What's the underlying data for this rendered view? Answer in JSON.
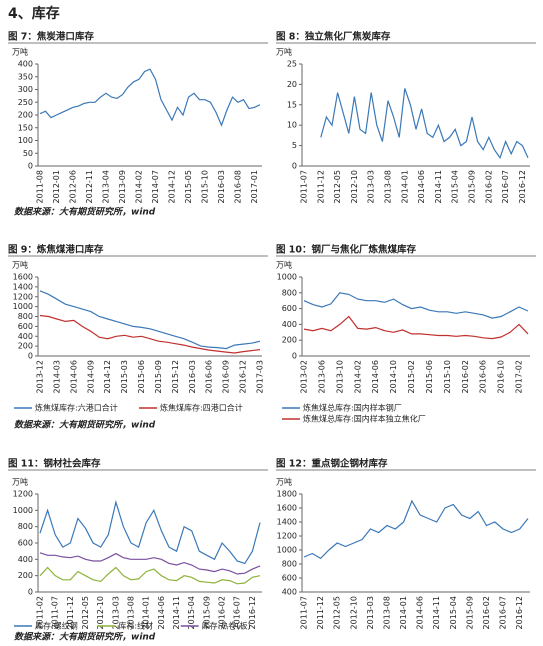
{
  "section_title": "4、库存",
  "sources": [
    "数据来源：大有期货研究所，wind",
    "数据来源：大有期货研究所，wind",
    "数据来源：大有期货研究所，wind"
  ],
  "chart_data": [
    {
      "type": "line",
      "title": "图 7：焦炭港口库存",
      "y_unit": "万吨",
      "x": [
        "2011-08",
        null,
        null,
        "2012-01",
        null,
        null,
        "2012-06",
        null,
        null,
        "2012-11",
        null,
        null,
        "2013-04",
        null,
        null,
        "2013-09",
        null,
        null,
        "2014-02",
        null,
        null,
        "2014-07",
        null,
        null,
        "2014-12",
        null,
        null,
        "2015-05",
        null,
        null,
        "2015-10",
        null,
        null,
        "2016-03",
        null,
        null,
        "2016-08",
        null,
        null,
        "2017-01",
        null
      ],
      "ylim": [
        0,
        400
      ],
      "yticks": [
        0,
        50,
        100,
        150,
        200,
        250,
        300,
        350,
        400
      ],
      "series": [
        {
          "color": "#3a78b8",
          "values": [
            205,
            215,
            190,
            200,
            210,
            220,
            230,
            235,
            245,
            250,
            250,
            270,
            285,
            270,
            265,
            280,
            310,
            330,
            340,
            370,
            380,
            340,
            260,
            220,
            180,
            230,
            200,
            270,
            285,
            260,
            260,
            250,
            210,
            160,
            220,
            270,
            250,
            260,
            225,
            230,
            240
          ]
        }
      ]
    },
    {
      "type": "line",
      "title": "图 8：独立焦化厂焦炭库存",
      "y_unit": "万吨",
      "x": [
        "2011-07",
        null,
        null,
        "2011-12",
        null,
        null,
        "2012-05",
        null,
        null,
        "2012-10",
        null,
        null,
        "2013-03",
        null,
        null,
        "2013-08",
        null,
        null,
        "2014-01",
        null,
        null,
        "2014-06",
        null,
        null,
        "2014-11",
        null,
        null,
        "2015-04",
        null,
        null,
        "2015-09",
        null,
        null,
        "2016-02",
        null,
        null,
        "2016-07",
        null,
        null,
        "2016-12",
        null
      ],
      "ylim": [
        0,
        25
      ],
      "yticks": [
        0,
        5,
        10,
        15,
        20,
        25
      ],
      "series": [
        {
          "color": "#3a78b8",
          "values": [
            null,
            null,
            null,
            7,
            12,
            10,
            18,
            13,
            8,
            17,
            9,
            8,
            18,
            10,
            6,
            16,
            12,
            7,
            19,
            15,
            9,
            14,
            8,
            7,
            10,
            6,
            7,
            9,
            5,
            6,
            12,
            6,
            4,
            7,
            4,
            2,
            6,
            3,
            6,
            5,
            2
          ]
        }
      ]
    },
    {
      "type": "line",
      "title": "图 9：炼焦煤港口库存",
      "y_unit": "万吨",
      "x": [
        "2013-12",
        null,
        "2014-03",
        null,
        "2014-06",
        null,
        "2014-09",
        null,
        "2014-12",
        null,
        "2015-03",
        null,
        "2015-06",
        null,
        "2015-09",
        null,
        "2015-12",
        null,
        "2016-03",
        null,
        "2016-06",
        null,
        "2016-09",
        null,
        "2016-12",
        null,
        "2017-03"
      ],
      "ylim": [
        0,
        1600
      ],
      "yticks": [
        0,
        200,
        400,
        600,
        800,
        1000,
        1200,
        1400,
        1600
      ],
      "series": [
        {
          "name": "炼焦煤库存:六港口合计",
          "color": "#3a78b8",
          "values": [
            1320,
            1250,
            1150,
            1050,
            1000,
            950,
            900,
            800,
            750,
            700,
            650,
            600,
            580,
            550,
            500,
            450,
            400,
            350,
            280,
            200,
            180,
            170,
            150,
            220,
            240,
            260,
            300
          ]
        },
        {
          "name": "炼焦煤库存:四港口合计",
          "color": "#c0302e",
          "values": [
            820,
            800,
            750,
            700,
            720,
            600,
            500,
            380,
            350,
            400,
            420,
            380,
            400,
            350,
            300,
            280,
            250,
            220,
            180,
            150,
            120,
            100,
            80,
            60,
            90,
            110,
            130
          ]
        }
      ]
    },
    {
      "type": "line",
      "title": "图 10：钢厂与焦化厂炼焦煤库存",
      "y_unit": "万吨",
      "x": [
        "2013-02",
        null,
        "2013-06",
        null,
        "2013-10",
        null,
        "2014-02",
        null,
        "2014-06",
        null,
        "2014-10",
        null,
        "2015-02",
        null,
        "2015-06",
        null,
        "2015-10",
        null,
        "2016-02",
        null,
        "2016-06",
        null,
        "2016-10",
        null,
        "2017-02",
        null
      ],
      "ylim": [
        0,
        1000
      ],
      "yticks": [
        0,
        200,
        400,
        600,
        800,
        1000
      ],
      "series": [
        {
          "name": "炼焦煤总库存:国内样本钢厂",
          "color": "#3a78b8",
          "values": [
            700,
            650,
            620,
            660,
            800,
            780,
            720,
            700,
            700,
            680,
            720,
            650,
            600,
            620,
            580,
            560,
            560,
            540,
            560,
            540,
            520,
            480,
            500,
            560,
            620,
            570
          ]
        },
        {
          "name": "炼焦煤总库存:国内样本独立焦化厂",
          "color": "#c0302e",
          "values": [
            340,
            320,
            350,
            320,
            400,
            500,
            350,
            340,
            360,
            320,
            300,
            330,
            280,
            280,
            270,
            260,
            260,
            250,
            260,
            250,
            230,
            220,
            240,
            300,
            400,
            280
          ]
        }
      ]
    },
    {
      "type": "line",
      "title": "图 11：钢材社会库存",
      "y_unit": "万吨",
      "x": [
        "2011-02",
        null,
        "2011-07",
        null,
        "2011-12",
        null,
        "2012-05",
        null,
        "2012-10",
        null,
        "2013-03",
        null,
        "2013-08",
        null,
        "2014-01",
        null,
        "2014-06",
        null,
        "2014-11",
        null,
        "2015-04",
        null,
        "2015-09",
        null,
        "2016-02",
        null,
        "2016-07",
        null,
        "2016-12",
        null
      ],
      "ylim": [
        0,
        1200
      ],
      "yticks": [
        0,
        200,
        400,
        600,
        800,
        1000,
        1200
      ],
      "series": [
        {
          "name": "库存:螺纹钢",
          "color": "#3a78b8",
          "values": [
            720,
            1000,
            700,
            550,
            600,
            900,
            780,
            600,
            550,
            700,
            1100,
            800,
            600,
            550,
            850,
            1000,
            750,
            550,
            500,
            800,
            750,
            500,
            450,
            400,
            600,
            500,
            380,
            350,
            500,
            850
          ]
        },
        {
          "name": "库存:线材",
          "color": "#8db33a",
          "values": [
            200,
            300,
            200,
            150,
            150,
            250,
            200,
            150,
            130,
            220,
            300,
            200,
            150,
            160,
            250,
            280,
            200,
            150,
            140,
            200,
            180,
            130,
            120,
            110,
            150,
            140,
            100,
            110,
            180,
            200
          ]
        },
        {
          "name": "库存:热卷(板)",
          "color": "#7b4fa0",
          "values": [
            480,
            450,
            450,
            430,
            420,
            440,
            400,
            380,
            380,
            420,
            470,
            420,
            400,
            400,
            400,
            420,
            400,
            350,
            330,
            360,
            330,
            280,
            270,
            250,
            280,
            260,
            220,
            230,
            280,
            320
          ]
        }
      ]
    },
    {
      "type": "line",
      "title": "图 12：重点钢企钢材库存",
      "y_unit": "万吨",
      "x": [
        "2011-07",
        null,
        "2011-12",
        null,
        "2012-05",
        null,
        "2012-10",
        null,
        "2013-03",
        null,
        "2013-08",
        null,
        "2014-01",
        null,
        "2014-06",
        null,
        "2014-11",
        null,
        "2015-04",
        null,
        "2015-09",
        null,
        "2016-02",
        null,
        "2016-07",
        null,
        "2016-12",
        null
      ],
      "ylim": [
        400,
        1800
      ],
      "yticks": [
        400,
        600,
        800,
        1000,
        1200,
        1400,
        1600,
        1800
      ],
      "series": [
        {
          "color": "#3a78b8",
          "values": [
            900,
            950,
            880,
            1000,
            1100,
            1050,
            1100,
            1150,
            1300,
            1250,
            1350,
            1300,
            1400,
            1700,
            1500,
            1450,
            1400,
            1600,
            1650,
            1500,
            1450,
            1550,
            1350,
            1400,
            1300,
            1250,
            1300,
            1450
          ]
        }
      ]
    }
  ]
}
